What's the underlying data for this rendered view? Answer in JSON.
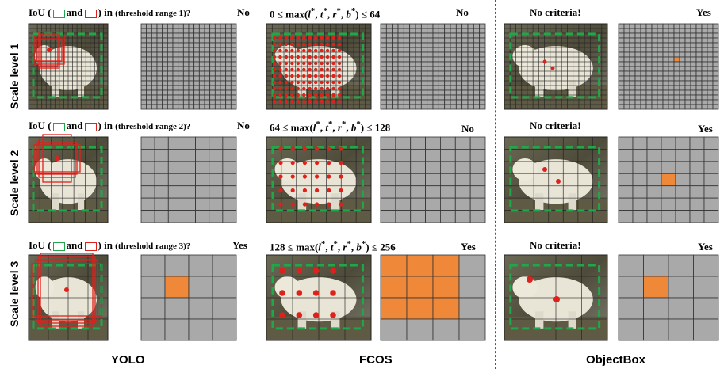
{
  "columns": [
    {
      "title": "YOLO"
    },
    {
      "title": "FCOS"
    },
    {
      "title": "ObjectBox"
    }
  ],
  "rows": [
    {
      "label": "Scale level 1",
      "yolo": {
        "pre": "IoU (",
        "mid": "and",
        "post": ") in",
        "range": "(threshold range 1)?",
        "answer": "No"
      },
      "fcos": {
        "text": "0 ≤ max(",
        "text2": ") ≤ 64",
        "answer": "No"
      },
      "objectbox": {
        "text": "No criteria!",
        "answer": "Yes"
      }
    },
    {
      "label": "Scale level 2",
      "yolo": {
        "pre": "IoU (",
        "mid": "and",
        "post": ") in",
        "range": "(threshold range 2)?",
        "answer": "No"
      },
      "fcos": {
        "text": "64 ≤ max(",
        "text2": ") ≤ 128",
        "answer": "No"
      },
      "objectbox": {
        "text": "No criteria!",
        "answer": "Yes"
      }
    },
    {
      "label": "Scale level 3",
      "yolo": {
        "pre": "IoU (",
        "mid": "and",
        "post": ") in",
        "range": "(threshold range 3)?",
        "answer": "Yes"
      },
      "fcos": {
        "text": "128 ≤ max(",
        "text2": ") ≤ 256",
        "answer": "Yes"
      },
      "objectbox": {
        "text": "No criteria!",
        "answer": "Yes"
      }
    }
  ],
  "fcos_vars": {
    "l": "l",
    "t": "t",
    "r": "r",
    "b": "b",
    "star": "*"
  },
  "colors": {
    "positive": "#f0883a",
    "negative": "#a9a9a9",
    "grid_line": "#333333",
    "box_green": "#1fa84a",
    "box_red": "#e0201b",
    "dot_red": "#e0201b"
  }
}
